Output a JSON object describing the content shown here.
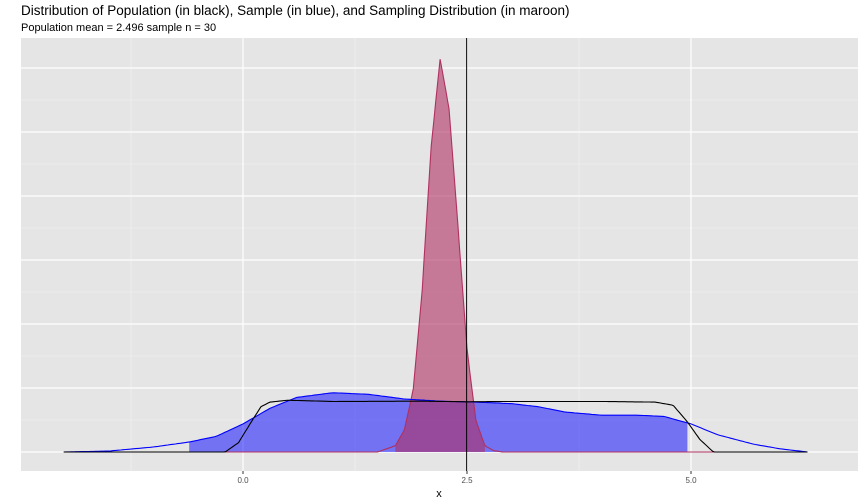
{
  "header": {
    "title": "Distribution of Population (in black), Sample (in blue), and Sampling Distribution (in maroon)",
    "subtitle": "Population mean = 2.496 sample n = 30"
  },
  "chart_data": {
    "type": "area",
    "title": "Distribution of Population (in black), Sample (in blue), and Sampling Distribution (in maroon)",
    "subtitle": "Population mean = 2.496 sample n = 30",
    "xlabel": "x",
    "ylabel": "",
    "xlim": [
      -2.0,
      6.5
    ],
    "ylim": [
      0,
      1.27
    ],
    "x_ticks": [
      {
        "value": 0.0,
        "label": "0.0"
      },
      {
        "value": 2.5,
        "label": "2.5"
      },
      {
        "value": 5.0,
        "label": "5.0"
      }
    ],
    "y_ticks_labeled": false,
    "grid": true,
    "legend": "none",
    "vline": {
      "x": 2.496,
      "color": "#000000"
    },
    "series": [
      {
        "role": "sample-density",
        "color": "#0000ff",
        "fill": "#0000ff",
        "fill_opacity": 0.5,
        "shaded_range": [
          -0.6,
          4.96
        ],
        "x": [
          -2.0,
          -1.5,
          -1.0,
          -0.6,
          -0.3,
          0.0,
          0.3,
          0.6,
          1.0,
          1.4,
          1.8,
          2.2,
          2.6,
          3.0,
          3.3,
          3.6,
          4.0,
          4.4,
          4.7,
          5.0,
          5.3,
          5.7,
          6.0,
          6.3
        ],
        "y": [
          0.0,
          0.003,
          0.016,
          0.032,
          0.05,
          0.09,
          0.14,
          0.175,
          0.19,
          0.185,
          0.17,
          0.163,
          0.16,
          0.155,
          0.145,
          0.128,
          0.118,
          0.118,
          0.114,
          0.09,
          0.055,
          0.025,
          0.01,
          0.0
        ]
      },
      {
        "role": "sampling-distribution",
        "color": "#b03060",
        "fill": "#b03060",
        "fill_opacity": 0.6,
        "shaded_range": [
          1.7,
          2.7
        ],
        "x": [
          -2.0,
          1.5,
          1.7,
          1.8,
          1.9,
          2.0,
          2.1,
          2.2,
          2.3,
          2.4,
          2.5,
          2.6,
          2.7,
          2.8,
          2.9,
          6.3
        ],
        "y": [
          0.0,
          0.0,
          0.02,
          0.07,
          0.2,
          0.52,
          0.98,
          1.26,
          1.1,
          0.72,
          0.33,
          0.1,
          0.02,
          0.004,
          0.0,
          0.0
        ]
      },
      {
        "role": "population-density",
        "color": "#000000",
        "fill": "none",
        "x": [
          -2.0,
          -0.2,
          -0.05,
          0.1,
          0.2,
          0.3,
          0.5,
          1.0,
          2.0,
          2.5,
          3.0,
          4.0,
          4.6,
          4.8,
          4.95,
          5.1,
          5.25,
          6.3
        ],
        "y": [
          0.0,
          0.0,
          0.03,
          0.1,
          0.145,
          0.16,
          0.166,
          0.162,
          0.163,
          0.161,
          0.162,
          0.162,
          0.16,
          0.15,
          0.1,
          0.04,
          0.0,
          0.0
        ]
      }
    ]
  }
}
